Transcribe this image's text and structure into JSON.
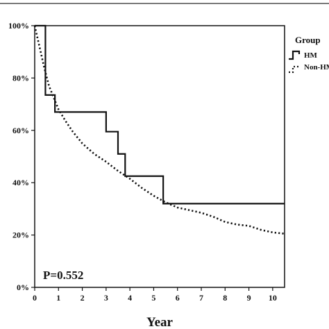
{
  "chart_data": {
    "type": "line",
    "title": "",
    "xlabel": "Year",
    "ylabel": "",
    "xlim": [
      0,
      10.5
    ],
    "ylim": [
      0,
      100
    ],
    "x_ticks": [
      0,
      1,
      2,
      3,
      4,
      5,
      6,
      7,
      8,
      9,
      10
    ],
    "x_tick_labels": [
      "0",
      "1",
      "2",
      "3",
      "4",
      "5",
      "6",
      "7",
      "8",
      "9",
      "10"
    ],
    "y_ticks": [
      0,
      20,
      40,
      60,
      80,
      100
    ],
    "y_tick_labels": [
      "0%",
      "20%",
      "40%",
      "60%",
      "80%",
      "100%"
    ],
    "grid": false,
    "legend": {
      "title": "Group",
      "position": "top-right",
      "entries": [
        "HM",
        "Non-HM"
      ]
    },
    "annotation": "P=0.552",
    "series": [
      {
        "name": "HM",
        "style": "solid-step",
        "color": "#111111",
        "x": [
          0,
          0.45,
          0.45,
          0.85,
          0.85,
          3.0,
          3.0,
          3.5,
          3.5,
          3.8,
          3.8,
          5.4,
          5.4,
          10.5
        ],
        "y": [
          100,
          100,
          73.5,
          73.5,
          67,
          67,
          59.5,
          59.5,
          51,
          51,
          42.5,
          42.5,
          32,
          32
        ]
      },
      {
        "name": "Non-HM",
        "style": "dotted",
        "color": "#111111",
        "x": [
          0,
          0.2,
          0.4,
          0.6,
          0.8,
          1.0,
          1.3,
          1.6,
          2.0,
          2.5,
          3.0,
          3.5,
          4.0,
          4.5,
          5.0,
          5.5,
          6.0,
          6.5,
          7.0,
          7.5,
          8.0,
          8.5,
          9.0,
          9.5,
          10.0,
          10.5
        ],
        "y": [
          100,
          92,
          84,
          77,
          72.5,
          68,
          63.5,
          59.5,
          55,
          51,
          48,
          44.5,
          41.5,
          38,
          35,
          32.5,
          30.5,
          29.5,
          28.5,
          27,
          25,
          24,
          23.5,
          22,
          21,
          20.5
        ]
      }
    ]
  }
}
